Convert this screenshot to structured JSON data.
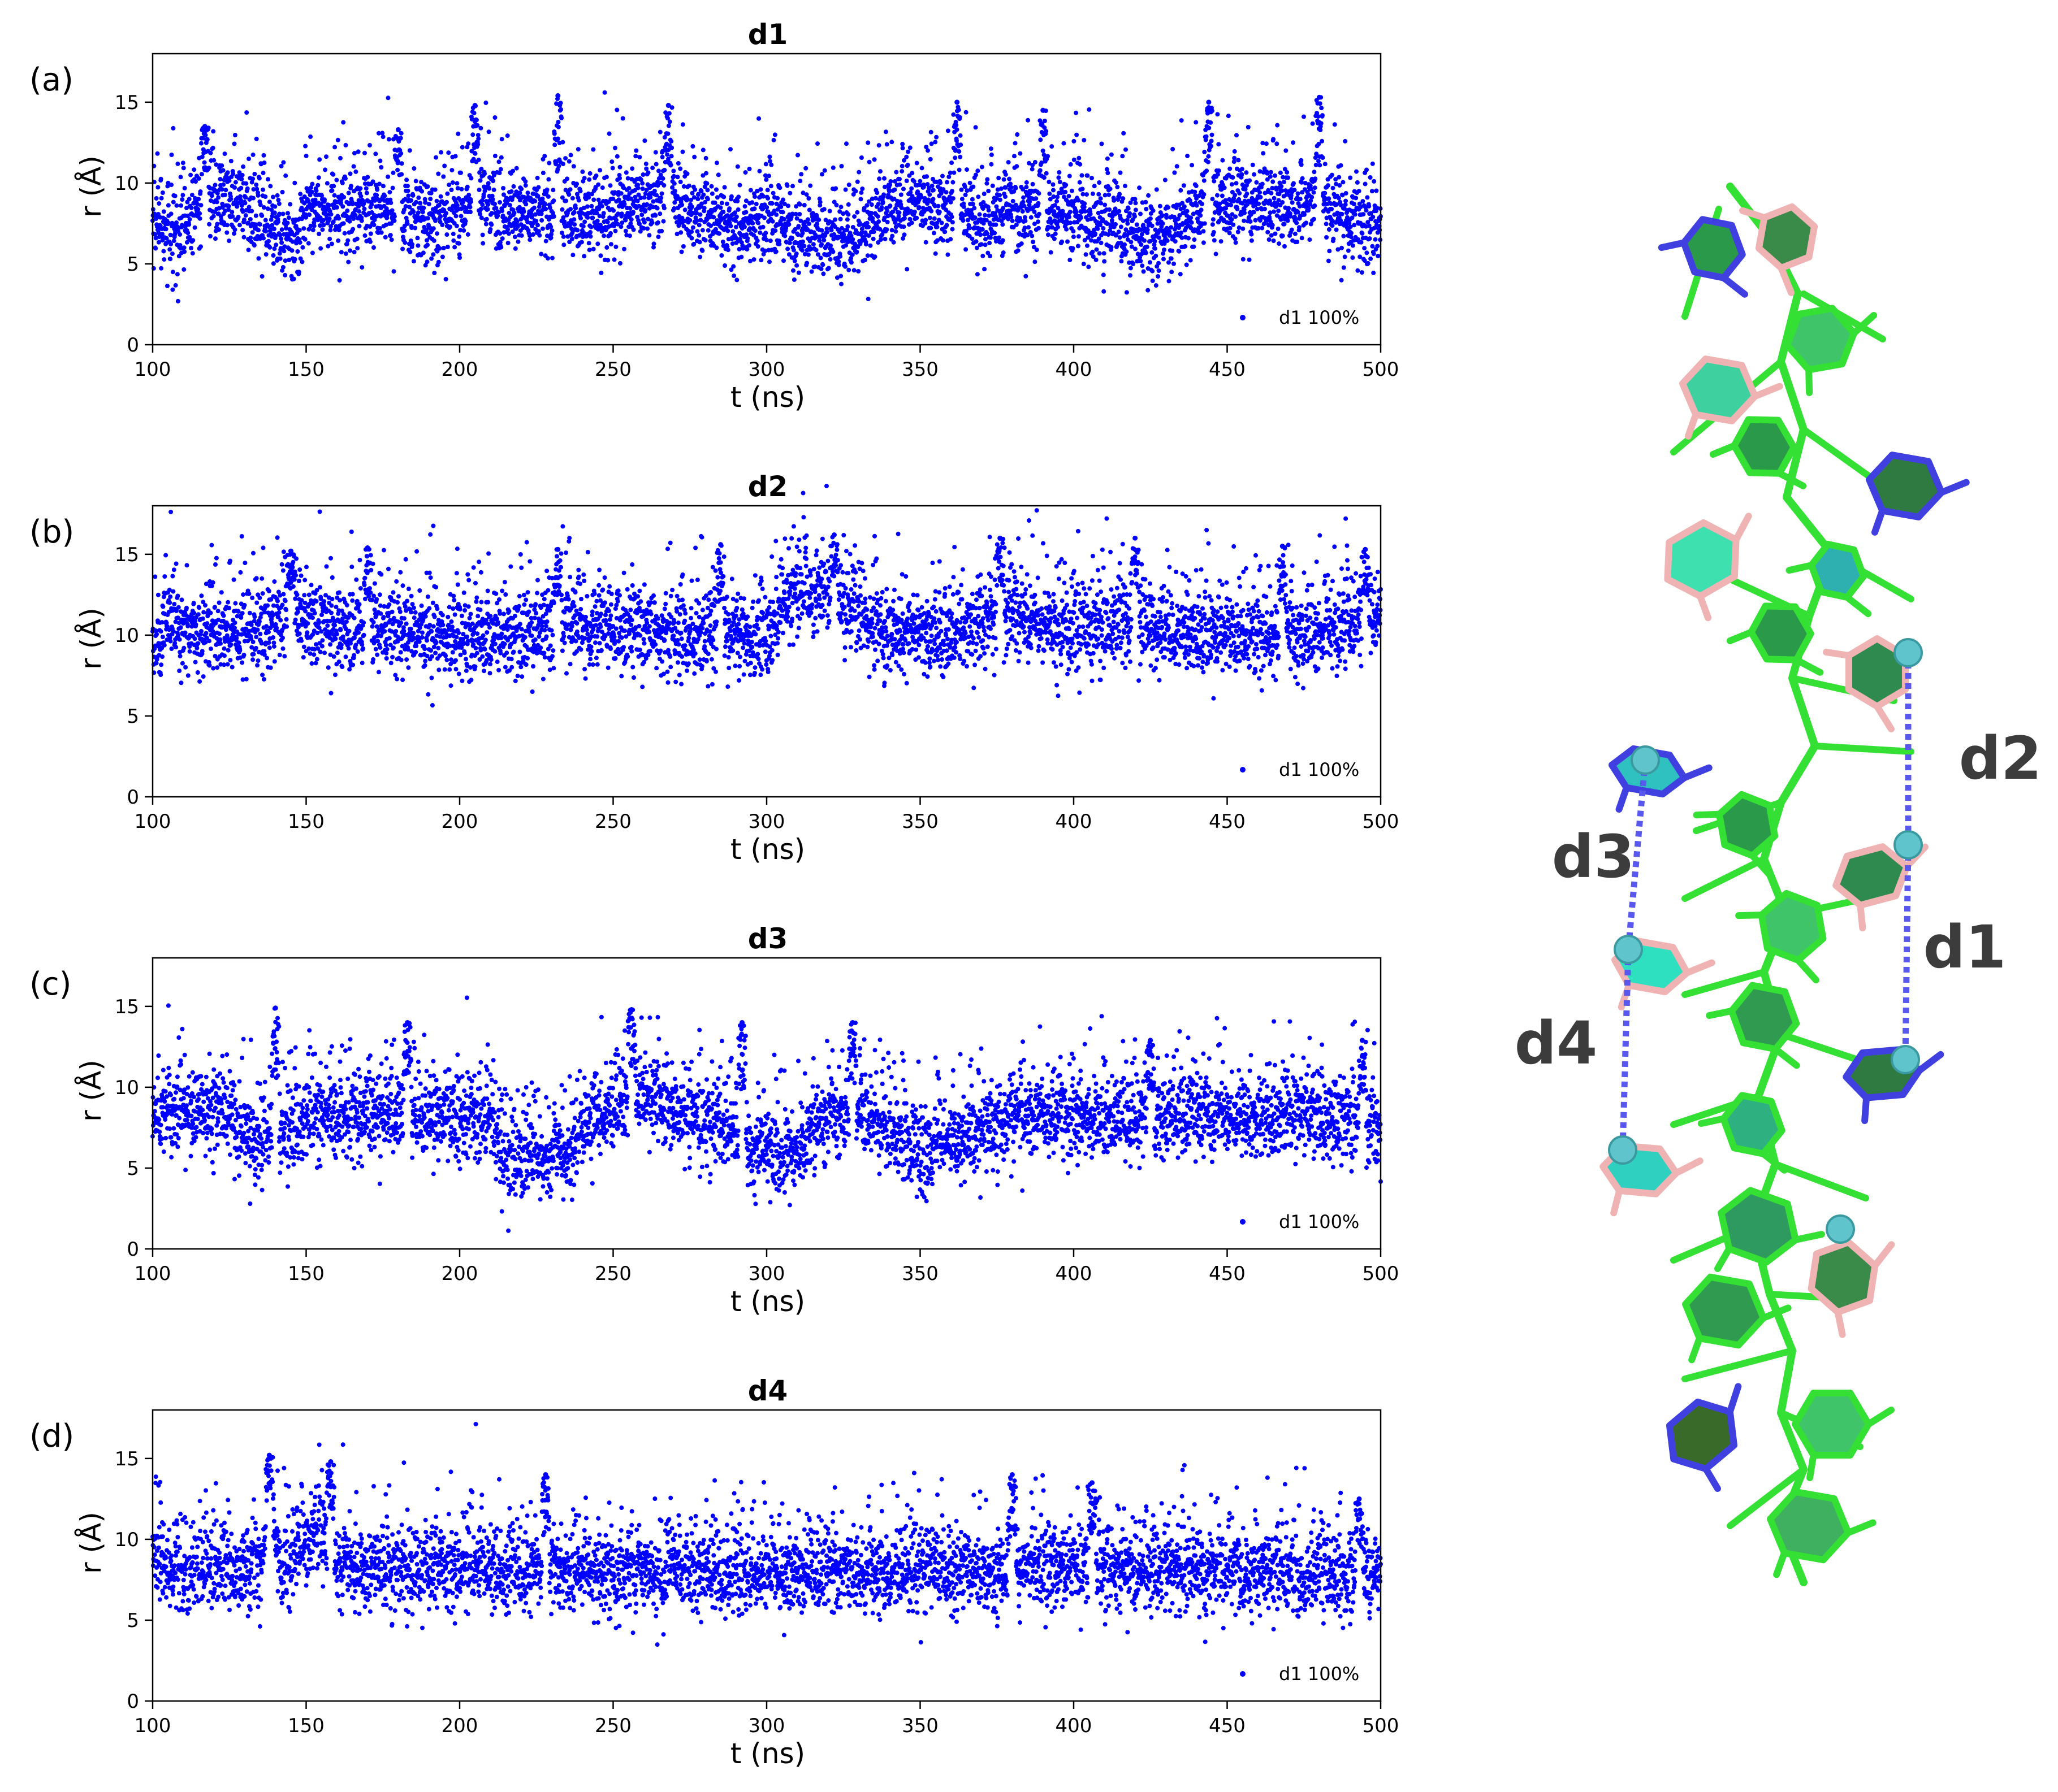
{
  "chart_data": [
    {
      "type": "scatter",
      "panel_label": "(a)",
      "title": "d1",
      "xlabel": "t (ns)",
      "ylabel": "r (Å)",
      "xlim": [
        100,
        500
      ],
      "ylim": [
        0,
        18
      ],
      "xticks": [
        100,
        150,
        200,
        250,
        300,
        350,
        400,
        450,
        500
      ],
      "yticks": [
        0,
        5,
        10,
        15
      ],
      "legend": "bottom-right",
      "series": [
        {
          "name": "d1 100%",
          "color": "#0000ff",
          "profile": [
            [
              100,
              7.4
            ],
            [
              110,
              7.0
            ],
            [
              115,
              8.6
            ],
            [
              120,
              8.9
            ],
            [
              130,
              8.6
            ],
            [
              140,
              7.0
            ],
            [
              145,
              6.0
            ],
            [
              150,
              8.3
            ],
            [
              160,
              8.1
            ],
            [
              170,
              8.6
            ],
            [
              180,
              8.4
            ],
            [
              190,
              7.4
            ],
            [
              200,
              8.1
            ],
            [
              205,
              9.5
            ],
            [
              210,
              8.6
            ],
            [
              220,
              8.3
            ],
            [
              230,
              8.1
            ],
            [
              240,
              8.0
            ],
            [
              250,
              8.0
            ],
            [
              260,
              8.8
            ],
            [
              270,
              9.0
            ],
            [
              280,
              8.0
            ],
            [
              290,
              7.2
            ],
            [
              300,
              8.0
            ],
            [
              310,
              7.0
            ],
            [
              320,
              6.5
            ],
            [
              330,
              6.8
            ],
            [
              340,
              8.4
            ],
            [
              350,
              8.6
            ],
            [
              360,
              8.4
            ],
            [
              370,
              7.2
            ],
            [
              380,
              8.6
            ],
            [
              390,
              8.0
            ],
            [
              400,
              8.3
            ],
            [
              410,
              7.6
            ],
            [
              420,
              6.6
            ],
            [
              430,
              6.5
            ],
            [
              440,
              8.2
            ],
            [
              450,
              9.0
            ],
            [
              460,
              8.6
            ],
            [
              470,
              8.6
            ],
            [
              480,
              8.8
            ],
            [
              490,
              7.8
            ],
            [
              500,
              6.8
            ]
          ],
          "spikes": [
            [
              117,
              13.5
            ],
            [
              180,
              13.3
            ],
            [
              205,
              14.8
            ],
            [
              232,
              15.4
            ],
            [
              268,
              14.8
            ],
            [
              362,
              15.0
            ],
            [
              390,
              14.5
            ],
            [
              444,
              15.0
            ],
            [
              480,
              15.3
            ]
          ]
        }
      ]
    },
    {
      "type": "scatter",
      "panel_label": "(b)",
      "title": "d2",
      "xlabel": "t (ns)",
      "ylabel": "r (Å)",
      "xlim": [
        100,
        500
      ],
      "ylim": [
        0,
        18
      ],
      "xticks": [
        100,
        150,
        200,
        250,
        300,
        350,
        400,
        450,
        500
      ],
      "yticks": [
        0,
        5,
        10,
        15
      ],
      "legend": "bottom-right",
      "series": [
        {
          "name": "d1 100%",
          "color": "#0000ff",
          "profile": [
            [
              100,
              9.0
            ],
            [
              105,
              11.0
            ],
            [
              110,
              10.4
            ],
            [
              130,
              10.0
            ],
            [
              145,
              11.5
            ],
            [
              160,
              10.2
            ],
            [
              180,
              10.2
            ],
            [
              200,
              9.8
            ],
            [
              220,
              9.9
            ],
            [
              235,
              11.0
            ],
            [
              250,
              10.2
            ],
            [
              270,
              10.0
            ],
            [
              290,
              10.0
            ],
            [
              300,
              10.0
            ],
            [
              312,
              13.0
            ],
            [
              320,
              12.5
            ],
            [
              330,
              11.0
            ],
            [
              340,
              9.9
            ],
            [
              360,
              10.2
            ],
            [
              378,
              11.5
            ],
            [
              390,
              10.5
            ],
            [
              400,
              10.0
            ],
            [
              420,
              11.0
            ],
            [
              430,
              10.0
            ],
            [
              450,
              10.1
            ],
            [
              470,
              10.0
            ],
            [
              490,
              10.3
            ],
            [
              500,
              11.2
            ]
          ],
          "spikes": [
            [
              145,
              15.2
            ],
            [
              170,
              15.4
            ],
            [
              232,
              15.3
            ],
            [
              285,
              15.6
            ],
            [
              322,
              16.2
            ],
            [
              376,
              16.0
            ],
            [
              420,
              16.0
            ],
            [
              468,
              15.5
            ],
            [
              495,
              15.3
            ]
          ]
        }
      ]
    },
    {
      "type": "scatter",
      "panel_label": "(c)",
      "title": "d3",
      "xlabel": "t (ns)",
      "ylabel": "r (Å)",
      "xlim": [
        100,
        500
      ],
      "ylim": [
        0,
        18
      ],
      "xticks": [
        100,
        150,
        200,
        250,
        300,
        350,
        400,
        450,
        500
      ],
      "yticks": [
        0,
        5,
        10,
        15
      ],
      "legend": "bottom-right",
      "series": [
        {
          "name": "d1 100%",
          "color": "#0000ff",
          "profile": [
            [
              100,
              8.4
            ],
            [
              120,
              8.5
            ],
            [
              135,
              6.5
            ],
            [
              150,
              8.0
            ],
            [
              160,
              7.8
            ],
            [
              180,
              8.4
            ],
            [
              200,
              8.0
            ],
            [
              210,
              8.2
            ],
            [
              215,
              5.6
            ],
            [
              235,
              6.0
            ],
            [
              245,
              8.2
            ],
            [
              255,
              9.5
            ],
            [
              270,
              8.5
            ],
            [
              290,
              7.4
            ],
            [
              295,
              6.0
            ],
            [
              310,
              5.8
            ],
            [
              318,
              8.0
            ],
            [
              330,
              8.2
            ],
            [
              345,
              7.0
            ],
            [
              350,
              5.9
            ],
            [
              365,
              7.0
            ],
            [
              380,
              8.0
            ],
            [
              400,
              8.2
            ],
            [
              420,
              8.0
            ],
            [
              440,
              8.4
            ],
            [
              460,
              8.0
            ],
            [
              480,
              8.3
            ],
            [
              500,
              7.6
            ]
          ],
          "spikes": [
            [
              140,
              14.9
            ],
            [
              183,
              14.0
            ],
            [
              256,
              14.8
            ],
            [
              292,
              14.0
            ],
            [
              328,
              14.0
            ],
            [
              425,
              12.9
            ],
            [
              494,
              12.9
            ]
          ]
        }
      ]
    },
    {
      "type": "scatter",
      "panel_label": "(d)",
      "title": "d4",
      "xlabel": "t (ns)",
      "ylabel": "r (Å)",
      "xlim": [
        100,
        500
      ],
      "ylim": [
        0,
        18
      ],
      "xticks": [
        100,
        150,
        200,
        250,
        300,
        350,
        400,
        450,
        500
      ],
      "yticks": [
        0,
        5,
        10,
        15
      ],
      "legend": "bottom-right",
      "series": [
        {
          "name": "d1 100%",
          "color": "#0000ff",
          "profile": [
            [
              100,
              9.5
            ],
            [
              105,
              8.0
            ],
            [
              135,
              8.0
            ],
            [
              138,
              12.0
            ],
            [
              142,
              8.0
            ],
            [
              157,
              11.0
            ],
            [
              160,
              8.0
            ],
            [
              200,
              8.2
            ],
            [
              250,
              8.0
            ],
            [
              300,
              7.9
            ],
            [
              350,
              8.0
            ],
            [
              400,
              8.1
            ],
            [
              450,
              8.0
            ],
            [
              500,
              7.8
            ]
          ],
          "spikes": [
            [
              138,
              15.2
            ],
            [
              158,
              14.8
            ],
            [
              228,
              14.0
            ],
            [
              380,
              14.0
            ],
            [
              406,
              13.5
            ],
            [
              493,
              12.5
            ]
          ]
        }
      ]
    }
  ],
  "figure": {
    "distance_labels": [
      "d1",
      "d2",
      "d3",
      "d4"
    ],
    "colors": {
      "backbone": "#33e033",
      "ring_fill": "#2a9a4a",
      "base_pink": "#f0b3b3",
      "base_blue": "#4040e0",
      "atom_cyan": "#5fc4cc",
      "distance_line": "#5858ee",
      "marker": "#0000ff"
    }
  }
}
